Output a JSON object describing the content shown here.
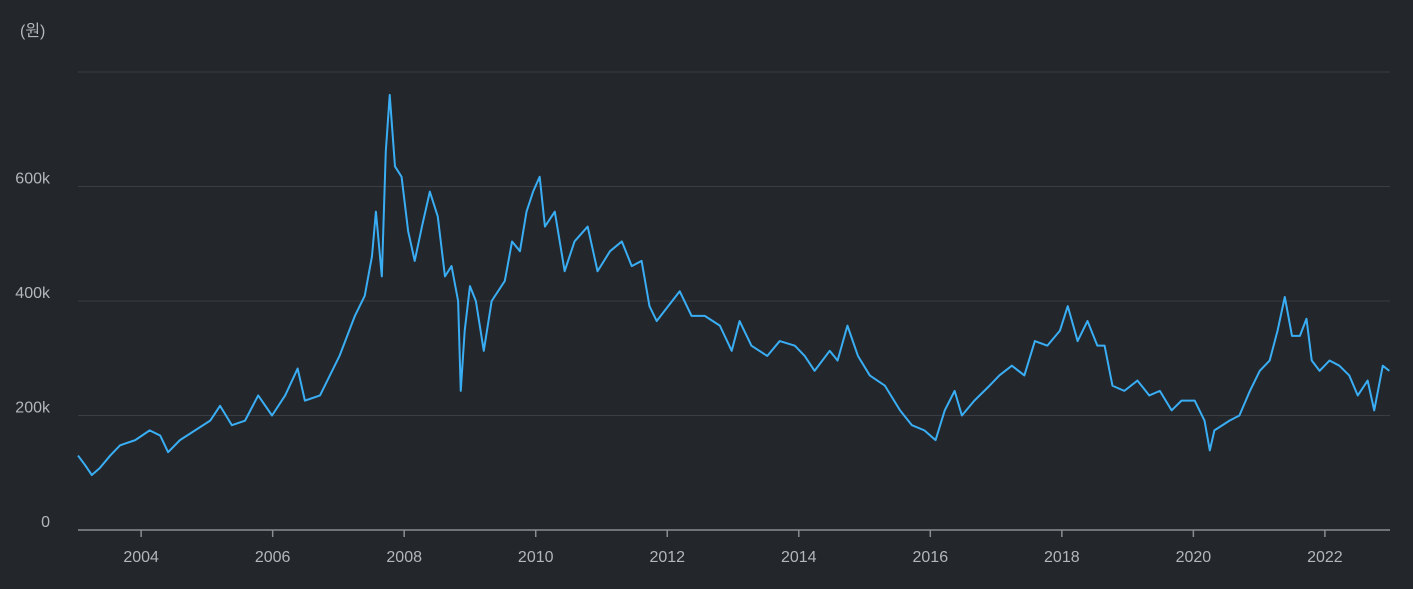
{
  "chart_data": {
    "type": "line",
    "y_label": "(원)",
    "xlim": [
      2003.04,
      2022.99
    ],
    "xticks": [
      2004,
      2006,
      2008,
      2010,
      2012,
      2014,
      2016,
      2018,
      2020,
      2022
    ],
    "ylim": [
      0,
      800000
    ],
    "yticks": [
      0,
      {
        "value": 200000,
        "label": "200k"
      },
      {
        "value": 400000,
        "label": "400k"
      },
      {
        "value": 600000,
        "label": "600k"
      }
    ],
    "grid": true,
    "x": [
      2003.04,
      2003.15,
      2003.25,
      2003.37,
      2003.53,
      2003.68,
      2003.91,
      2004.13,
      2004.29,
      2004.41,
      2004.59,
      2004.82,
      2005.05,
      2005.2,
      2005.38,
      2005.58,
      2005.78,
      2005.99,
      2006.19,
      2006.38,
      2006.49,
      2006.72,
      2007.02,
      2007.25,
      2007.4,
      2007.51,
      2007.57,
      2007.66,
      2007.72,
      2007.78,
      2007.86,
      2007.96,
      2008.06,
      2008.16,
      2008.27,
      2008.39,
      2008.51,
      2008.62,
      2008.72,
      2008.82,
      2008.86,
      2008.92,
      2009.0,
      2009.09,
      2009.21,
      2009.33,
      2009.53,
      2009.64,
      2009.76,
      2009.86,
      2009.96,
      2010.06,
      2010.14,
      2010.29,
      2010.44,
      2010.59,
      2010.79,
      2010.94,
      2011.13,
      2011.31,
      2011.46,
      2011.61,
      2011.73,
      2011.84,
      2011.96,
      2012.19,
      2012.37,
      2012.57,
      2012.8,
      2012.98,
      2013.1,
      2013.28,
      2013.52,
      2013.71,
      2013.94,
      2014.09,
      2014.24,
      2014.47,
      2014.59,
      2014.74,
      2014.9,
      2015.08,
      2015.31,
      2015.54,
      2015.72,
      2015.91,
      2016.08,
      2016.22,
      2016.37,
      2016.48,
      2016.67,
      2016.9,
      2017.05,
      2017.24,
      2017.43,
      2017.59,
      2017.78,
      2017.97,
      2018.09,
      2018.24,
      2018.39,
      2018.54,
      2018.65,
      2018.77,
      2018.95,
      2019.15,
      2019.33,
      2019.49,
      2019.67,
      2019.82,
      2020.02,
      2020.17,
      2020.25,
      2020.32,
      2020.55,
      2020.7,
      2020.86,
      2021.01,
      2021.16,
      2021.28,
      2021.39,
      2021.5,
      2021.62,
      2021.72,
      2021.8,
      2021.92,
      2022.07,
      2022.22,
      2022.37,
      2022.5,
      2022.65,
      2022.75,
      2022.88,
      2022.98
    ],
    "series": [
      {
        "color": "#3aaef4",
        "values": [
          130000,
          113000,
          96000,
          108000,
          130000,
          148000,
          157000,
          174000,
          165000,
          136000,
          157000,
          174000,
          191000,
          217000,
          183000,
          191000,
          235000,
          200000,
          235000,
          282000,
          226000,
          235000,
          305000,
          374000,
          409000,
          478000,
          556000,
          443000,
          661000,
          760000,
          635000,
          617000,
          522000,
          470000,
          530000,
          591000,
          548000,
          443000,
          461000,
          400000,
          243000,
          348000,
          426000,
          400000,
          313000,
          400000,
          435000,
          504000,
          487000,
          556000,
          591000,
          617000,
          530000,
          556000,
          452000,
          504000,
          530000,
          452000,
          487000,
          504000,
          461000,
          470000,
          391000,
          365000,
          383000,
          417000,
          374000,
          374000,
          357000,
          313000,
          365000,
          322000,
          304000,
          330000,
          322000,
          304000,
          278000,
          313000,
          296000,
          357000,
          304000,
          270000,
          252000,
          209000,
          183000,
          174000,
          157000,
          209000,
          243000,
          200000,
          226000,
          252000,
          270000,
          287000,
          270000,
          330000,
          322000,
          348000,
          391000,
          330000,
          365000,
          322000,
          322000,
          252000,
          243000,
          261000,
          235000,
          243000,
          209000,
          226000,
          226000,
          191000,
          139000,
          174000,
          191000,
          200000,
          243000,
          278000,
          296000,
          348000,
          407000,
          339000,
          339000,
          369000,
          296000,
          278000,
          296000,
          287000,
          270000,
          235000,
          261000,
          209000,
          287000,
          278000
        ]
      }
    ]
  }
}
